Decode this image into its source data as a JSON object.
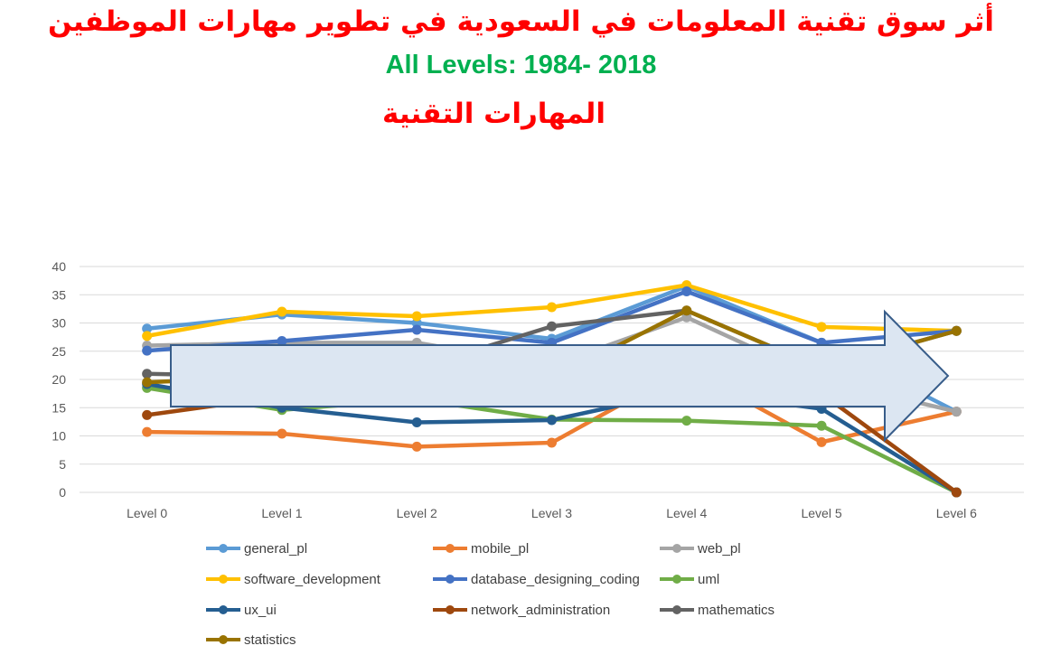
{
  "header": {
    "title": "أثر سوق تقنية المعلومات في السعودية في تطوير مهارات الموظفين",
    "subtitle": "All Levels:  1984- 2018",
    "section": "المهارات التقنية"
  },
  "chart_data": {
    "type": "line",
    "categories": [
      "Level 0",
      "Level 1",
      "Level 2",
      "Level 3",
      "Level 4",
      "Level 5",
      "Level 6"
    ],
    "ylim": [
      0,
      40
    ],
    "yticks": [
      0,
      5,
      10,
      15,
      20,
      25,
      30,
      35,
      40
    ],
    "grid": true,
    "legend_position": "bottom",
    "series": [
      {
        "name": "general_pl",
        "color": "#5b9bd5",
        "values": [
          29,
          31.5,
          30,
          27.2,
          36.5,
          26.5,
          14.3
        ]
      },
      {
        "name": "mobile_pl",
        "color": "#ed7d31",
        "values": [
          10.7,
          10.4,
          8.1,
          8.8,
          22,
          8.9,
          14.3
        ]
      },
      {
        "name": "web_pl",
        "color": "#a5a5a5",
        "values": [
          26,
          26.5,
          26.5,
          22.5,
          31,
          20,
          14.3
        ]
      },
      {
        "name": "software_development",
        "color": "#ffc000",
        "values": [
          27.7,
          32,
          31.2,
          32.8,
          36.7,
          29.3,
          28.6
        ]
      },
      {
        "name": "database_designing_coding",
        "color": "#4472c4",
        "values": [
          25.1,
          26.8,
          28.8,
          26.5,
          35.6,
          26.5,
          28.6
        ]
      },
      {
        "name": "uml",
        "color": "#70ad47",
        "values": [
          18.5,
          14.6,
          16.5,
          12.9,
          12.7,
          11.8,
          0
        ]
      },
      {
        "name": "ux_ui",
        "color": "#255e91",
        "values": [
          19.2,
          15,
          12.4,
          12.8,
          18,
          14.8,
          0
        ]
      },
      {
        "name": "network_administration",
        "color": "#9e480e",
        "values": [
          13.7,
          17,
          17.5,
          17,
          20,
          17.5,
          0
        ]
      },
      {
        "name": "mathematics",
        "color": "#636363",
        "values": [
          21,
          20.5,
          22,
          29.4,
          32.2,
          22,
          28.6
        ]
      },
      {
        "name": "statistics",
        "color": "#997300",
        "values": [
          19.5,
          20.5,
          21.5,
          20,
          32.2,
          22,
          28.6
        ]
      }
    ]
  }
}
